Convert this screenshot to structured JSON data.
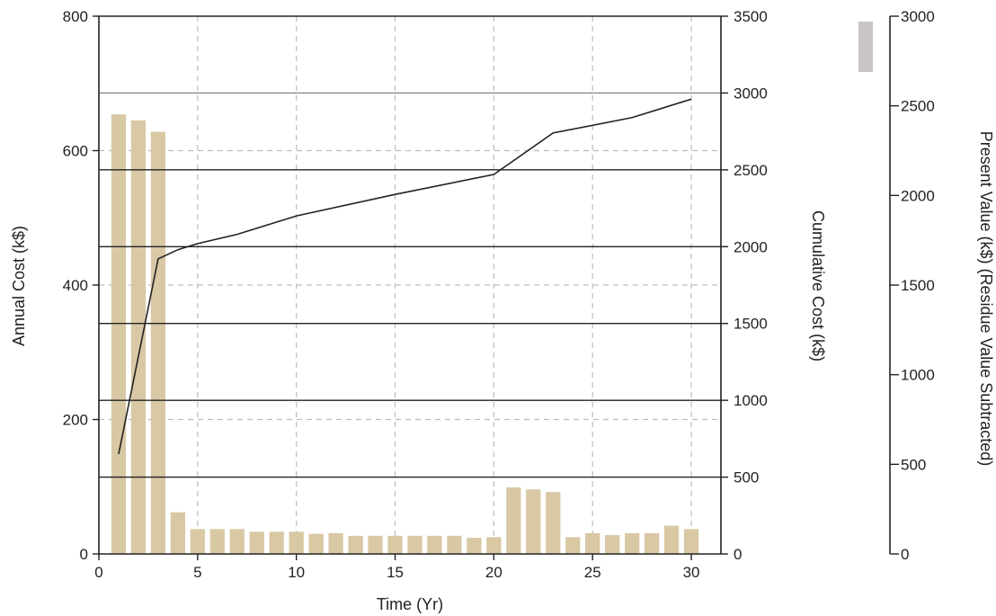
{
  "chart_data": {
    "type": "bar",
    "title": "",
    "xlabel": "Time (Yr)",
    "ylabel_left": "Annual Cost (k$)",
    "ylabel_right": "Cumulative Cost (k$)",
    "ylabel_far_right": "Present Value (k$) (Residue Value Subtracted)",
    "xlim": [
      0,
      31.5
    ],
    "ylim_left": [
      0,
      800
    ],
    "ylim_right": [
      0,
      3500
    ],
    "ylim_far_right": [
      0,
      3000
    ],
    "x_ticks": [
      "0",
      "5",
      "10",
      "15",
      "20",
      "25",
      "30"
    ],
    "y_ticks_left": [
      "0",
      "200",
      "400",
      "600",
      "800"
    ],
    "y_ticks_right": [
      "0",
      "500",
      "1000",
      "1500",
      "2000",
      "2500",
      "3000",
      "3500"
    ],
    "y_ticks_far_right": [
      "0",
      "500",
      "1000",
      "1500",
      "2000",
      "2500",
      "3000"
    ],
    "grid": true,
    "series": [
      {
        "axis": "left",
        "type": "bar",
        "color": "#d8c8a4",
        "x": [
          1,
          2,
          3,
          4,
          5,
          6,
          7,
          8,
          9,
          10,
          11,
          12,
          13,
          14,
          15,
          16,
          17,
          18,
          19,
          20,
          21,
          22,
          23,
          24,
          25,
          26,
          27,
          28,
          29,
          30
        ],
        "values": [
          654,
          645,
          628,
          62,
          37,
          37,
          37,
          33,
          33,
          33,
          30,
          31,
          27,
          27,
          27,
          27,
          27,
          27,
          24,
          25,
          99,
          96,
          92,
          25,
          31,
          28,
          31,
          31,
          42,
          37
        ]
      },
      {
        "axis": "right",
        "type": "line",
        "color": "#222222",
        "x": [
          1,
          3,
          4,
          5,
          7,
          10,
          15,
          20,
          23,
          27,
          30
        ],
        "values": [
          650,
          1920,
          1980,
          2020,
          2080,
          2200,
          2340,
          2470,
          2740,
          2840,
          2960
        ]
      },
      {
        "axis": "far_right",
        "type": "bar",
        "color": "#c8c3c6",
        "values": [
          3000
        ]
      }
    ]
  }
}
